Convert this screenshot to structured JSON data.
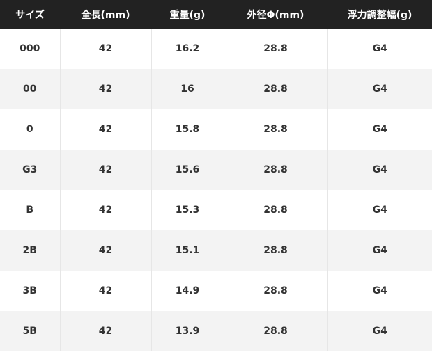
{
  "headers": [
    "サイズ",
    "全長(mm)",
    "重量(g)",
    "外径Φ(mm)",
    "浮力調整幅(g)"
  ],
  "rows": [
    [
      "000",
      "42",
      "16.2",
      "28.8",
      "G4"
    ],
    [
      "00",
      "42",
      "16",
      "28.8",
      "G4"
    ],
    [
      "0",
      "42",
      "15.8",
      "28.8",
      "G4"
    ],
    [
      "G3",
      "42",
      "15.6",
      "28.8",
      "G4"
    ],
    [
      "B",
      "42",
      "15.3",
      "28.8",
      "G4"
    ],
    [
      "2B",
      "42",
      "15.1",
      "28.8",
      "G4"
    ],
    [
      "3B",
      "42",
      "14.9",
      "28.8",
      "G4"
    ],
    [
      "5B",
      "42",
      "13.9",
      "28.8",
      "G4"
    ]
  ],
  "colors": {
    "header_bg": "#222222",
    "stripe": "#f3f3f3"
  }
}
